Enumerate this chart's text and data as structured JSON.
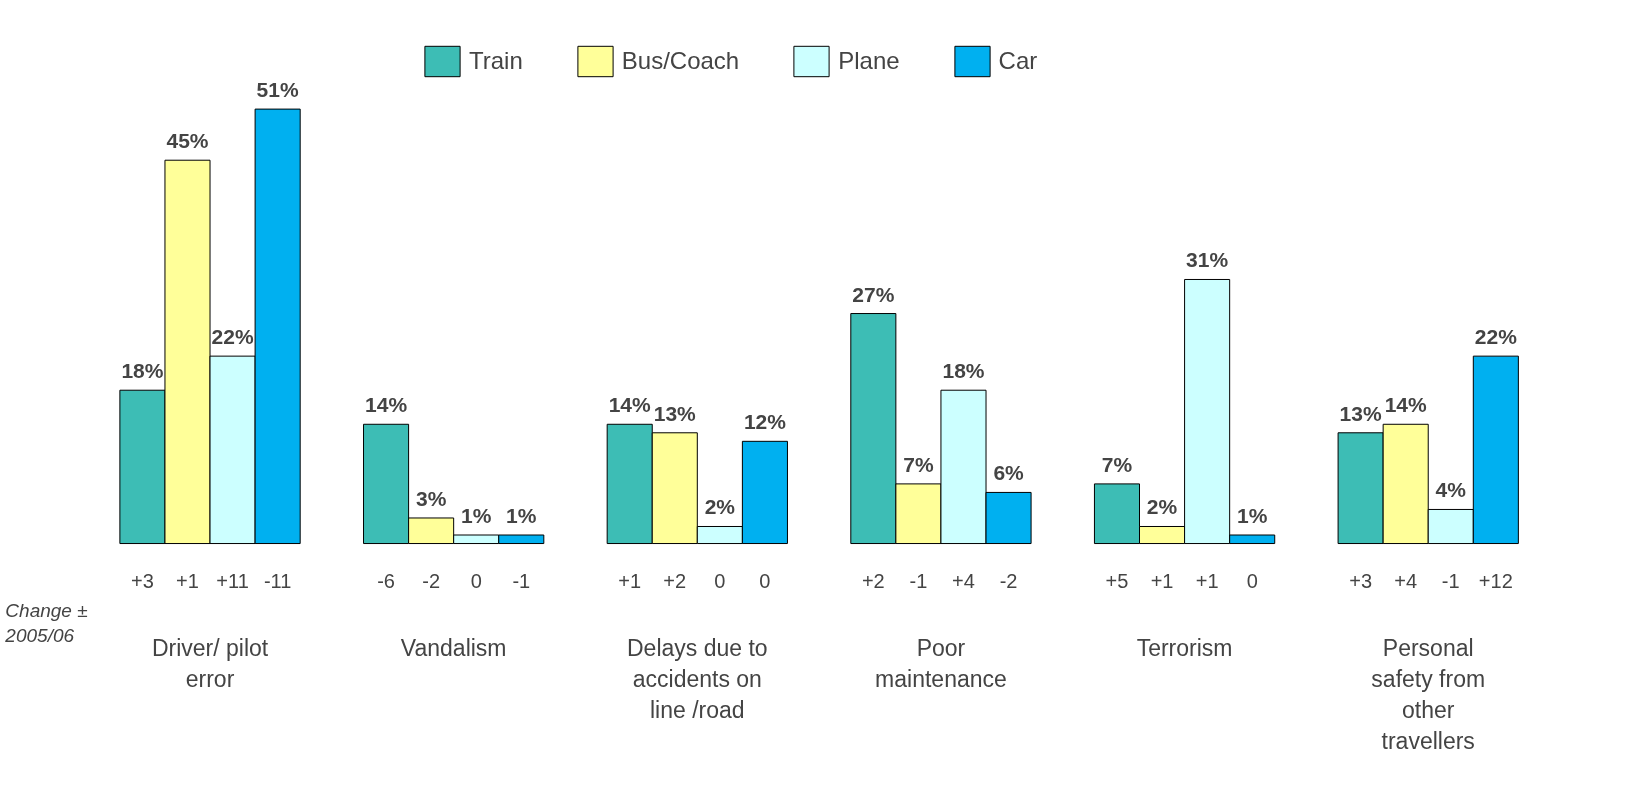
{
  "chart_data": {
    "type": "bar",
    "relative": false,
    "categories": [
      "Driver/ pilot error",
      "Vandalism",
      "Delays due to accidents on line /road",
      "Poor maintenance",
      "Terrorism",
      "Personal safety from other travellers"
    ],
    "series": [
      {
        "name": "Train",
        "color": "#3dbdb5",
        "values": [
          18,
          14,
          14,
          27,
          7,
          13
        ],
        "value_labels": [
          "18%",
          "14%",
          "14%",
          "27%",
          "7%",
          "13%"
        ]
      },
      {
        "name": "Bus/Coach",
        "color": "#ffff99",
        "values": [
          45,
          3,
          13,
          7,
          2,
          14
        ],
        "value_labels": [
          "45%",
          "3%",
          "13%",
          "7%",
          "2%",
          "14%"
        ]
      },
      {
        "name": "Plane",
        "color": "#ccffff",
        "values": [
          22,
          1,
          2,
          18,
          31,
          4
        ],
        "value_labels": [
          "22%",
          "1%",
          "2%",
          "18%",
          "31%",
          "4%"
        ]
      },
      {
        "name": "Car",
        "color": "#00b0f0",
        "values": [
          51,
          1,
          12,
          6,
          1,
          22
        ],
        "value_labels": [
          "51%",
          "1%",
          "12%",
          "6%",
          "1%",
          "22%"
        ]
      }
    ],
    "annotations": [
      "Change ± 2005/06",
      "+3",
      "+1",
      "+11",
      "-11",
      "-6",
      "-2",
      "0",
      "-1",
      "+1",
      "+2",
      "0",
      "0",
      "+2",
      "-1",
      "+4",
      "-2",
      "+5",
      "+1",
      "+1",
      "0",
      "+3",
      "+4",
      "-1",
      "+12"
    ],
    "legend": "top",
    "grid": false
  }
}
